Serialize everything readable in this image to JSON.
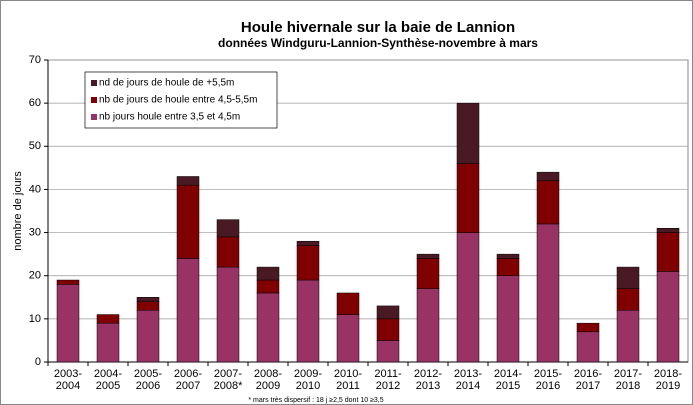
{
  "chart_data": {
    "type": "stacked_bar",
    "title": "Houle hivernale sur la baie de Lannion",
    "subtitle": "données Windguru-Lannion-Synthèse-novembre  à mars",
    "y_label": "nombre de jours",
    "footnote": "* mars très dispersif : 18 j ≥2,5 dont 10 ≥3,5",
    "categories": [
      "2003-2004",
      "2004-2005",
      "2005-2006",
      "2006-2007",
      "2007-2008*",
      "2008-2009",
      "2009-2010",
      "2010-2011",
      "2011-2012",
      "2012-2013",
      "2013-2014",
      "2014-2015",
      "2015-2016",
      "2016-2017",
      "2017-2018",
      "2018-2019"
    ],
    "series": [
      {
        "name": "nd de jours de houle de +5,5m",
        "color": "#4a1a24",
        "values": [
          0,
          0,
          1,
          2,
          4,
          3,
          1,
          0,
          3,
          1,
          14,
          1,
          2,
          0,
          5,
          1
        ]
      },
      {
        "name": "nb de jours de houle entre 4,5-5,5m",
        "color": "#800000",
        "values": [
          1,
          2,
          2,
          17,
          7,
          3,
          8,
          5,
          5,
          7,
          16,
          4,
          10,
          2,
          5,
          9
        ]
      },
      {
        "name": "nb jours houle entre 3,5 et 4,5m",
        "color": "#993366",
        "values": [
          18,
          9,
          12,
          24,
          22,
          16,
          19,
          11,
          5,
          17,
          30,
          20,
          32,
          7,
          12,
          21
        ]
      }
    ],
    "ylim": [
      0,
      70
    ],
    "yticks": [
      0,
      10,
      20,
      30,
      40,
      50,
      60,
      70
    ],
    "grid": true
  }
}
